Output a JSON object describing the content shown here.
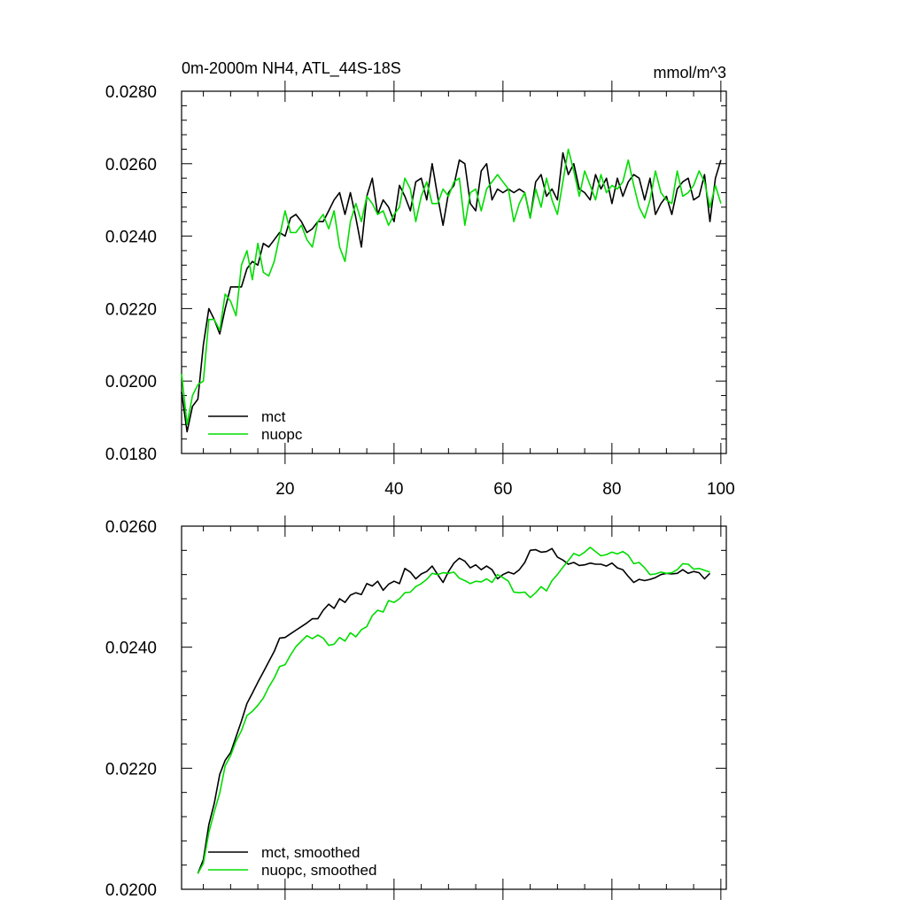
{
  "chart_data": [
    {
      "type": "line",
      "title": "0m-2000m NH4, ATL_44S-18S",
      "units": "mmol/m^3",
      "xlim": [
        1,
        101
      ],
      "ylim": [
        0.018,
        0.028
      ],
      "yticks": [
        "0.0180",
        "0.0200",
        "0.0220",
        "0.0240",
        "0.0260",
        "0.0280"
      ],
      "xticks": [
        "20",
        "40",
        "60",
        "80",
        "100"
      ],
      "grid": false,
      "legend": "bottom-left",
      "x": [
        1,
        2,
        3,
        4,
        5,
        6,
        7,
        8,
        9,
        10,
        11,
        12,
        13,
        14,
        15,
        16,
        17,
        18,
        19,
        20,
        21,
        22,
        23,
        24,
        25,
        26,
        27,
        28,
        29,
        30,
        31,
        32,
        33,
        34,
        35,
        36,
        37,
        38,
        39,
        40,
        41,
        42,
        43,
        44,
        45,
        46,
        47,
        48,
        49,
        50,
        51,
        52,
        53,
        54,
        55,
        56,
        57,
        58,
        59,
        60,
        61,
        62,
        63,
        64,
        65,
        66,
        67,
        68,
        69,
        70,
        71,
        72,
        73,
        74,
        75,
        76,
        77,
        78,
        79,
        80,
        81,
        82,
        83,
        84,
        85,
        86,
        87,
        88,
        89,
        90,
        91,
        92,
        93,
        94,
        95,
        96,
        97,
        98,
        99,
        100
      ],
      "series": [
        {
          "name": "mct",
          "color": "#000000",
          "values": [
            0.0197,
            0.0186,
            0.0193,
            0.0195,
            0.021,
            0.022,
            0.0217,
            0.0213,
            0.022,
            0.0226,
            0.0226,
            0.0226,
            0.0231,
            0.0233,
            0.0232,
            0.0238,
            0.0237,
            0.0239,
            0.0241,
            0.024,
            0.0245,
            0.0246,
            0.0244,
            0.0241,
            0.0242,
            0.0244,
            0.0244,
            0.0247,
            0.025,
            0.0252,
            0.0246,
            0.0252,
            0.0245,
            0.0237,
            0.0251,
            0.0256,
            0.0246,
            0.025,
            0.0248,
            0.0244,
            0.0254,
            0.0251,
            0.0247,
            0.0255,
            0.0256,
            0.025,
            0.026,
            0.0251,
            0.0243,
            0.0252,
            0.0254,
            0.0261,
            0.026,
            0.0249,
            0.0247,
            0.0258,
            0.026,
            0.025,
            0.0253,
            0.0252,
            0.0253,
            0.0252,
            0.0253,
            0.0252,
            0.0245,
            0.0255,
            0.0257,
            0.0251,
            0.0253,
            0.025,
            0.0263,
            0.0257,
            0.026,
            0.0253,
            0.0252,
            0.025,
            0.0257,
            0.0253,
            0.0256,
            0.0249,
            0.0256,
            0.0251,
            0.0255,
            0.0257,
            0.0256,
            0.025,
            0.0256,
            0.0246,
            0.0249,
            0.0251,
            0.0246,
            0.0253,
            0.0255,
            0.0256,
            0.025,
            0.0251,
            0.0257,
            0.0244,
            0.0256,
            0.0261
          ]
        },
        {
          "name": "nuopc",
          "color": "#00dd00",
          "values": [
            0.0202,
            0.0188,
            0.0196,
            0.0199,
            0.02,
            0.0217,
            0.0217,
            0.0214,
            0.0224,
            0.0222,
            0.0218,
            0.0232,
            0.0236,
            0.0228,
            0.0238,
            0.023,
            0.0229,
            0.0233,
            0.024,
            0.0247,
            0.0241,
            0.0241,
            0.0243,
            0.0239,
            0.0237,
            0.0244,
            0.0246,
            0.0242,
            0.0247,
            0.0237,
            0.0233,
            0.0244,
            0.0249,
            0.0244,
            0.0251,
            0.0249,
            0.0246,
            0.0247,
            0.0243,
            0.0246,
            0.0248,
            0.0256,
            0.0253,
            0.0244,
            0.0251,
            0.0255,
            0.0249,
            0.0249,
            0.0253,
            0.0251,
            0.0255,
            0.0256,
            0.0243,
            0.0252,
            0.0253,
            0.0247,
            0.0253,
            0.0255,
            0.0257,
            0.0255,
            0.0253,
            0.0244,
            0.0249,
            0.0252,
            0.0245,
            0.0253,
            0.0248,
            0.0256,
            0.025,
            0.0246,
            0.0255,
            0.0264,
            0.0258,
            0.0251,
            0.0258,
            0.0254,
            0.025,
            0.0257,
            0.0252,
            0.0254,
            0.0253,
            0.0255,
            0.0261,
            0.0254,
            0.0248,
            0.0245,
            0.025,
            0.0258,
            0.0252,
            0.025,
            0.0249,
            0.0258,
            0.0251,
            0.0252,
            0.0254,
            0.0258,
            0.0255,
            0.0248,
            0.0254,
            0.0249
          ]
        }
      ]
    },
    {
      "type": "line",
      "title": "",
      "xlim": [
        1,
        101
      ],
      "ylim": [
        0.02,
        0.026
      ],
      "yticks": [
        "0.0200",
        "0.0220",
        "0.0240",
        "0.0260"
      ],
      "grid": false,
      "legend": "bottom-left",
      "x": [
        4,
        5,
        6,
        7,
        8,
        9,
        10,
        11,
        12,
        13,
        14,
        15,
        16,
        17,
        18,
        19,
        20,
        21,
        22,
        23,
        24,
        25,
        26,
        27,
        28,
        29,
        30,
        31,
        32,
        33,
        34,
        35,
        36,
        37,
        38,
        39,
        40,
        41,
        42,
        43,
        44,
        45,
        46,
        47,
        48,
        49,
        50,
        51,
        52,
        53,
        54,
        55,
        56,
        57,
        58,
        59,
        60,
        61,
        62,
        63,
        64,
        65,
        66,
        67,
        68,
        69,
        70,
        71,
        72,
        73,
        74,
        75,
        76,
        77,
        78,
        79,
        80,
        81,
        82,
        83,
        84,
        85,
        86,
        87,
        88,
        89,
        90,
        91,
        92,
        93,
        94,
        95,
        96,
        97,
        98
      ],
      "series": [
        {
          "name": "mct, smoothed",
          "color": "#000000",
          "values": [
            0.02026,
            0.02049,
            0.02107,
            0.02142,
            0.0219,
            0.02213,
            0.02226,
            0.02252,
            0.02278,
            0.02307,
            0.02324,
            0.02342,
            0.02359,
            0.02376,
            0.02393,
            0.02415,
            0.02416,
            0.02422,
            0.02428,
            0.02434,
            0.0244,
            0.02447,
            0.02447,
            0.02461,
            0.02471,
            0.02464,
            0.0248,
            0.02474,
            0.02486,
            0.0249,
            0.02487,
            0.02505,
            0.02501,
            0.02509,
            0.02494,
            0.02504,
            0.02509,
            0.02505,
            0.0253,
            0.02524,
            0.02513,
            0.02521,
            0.02525,
            0.02534,
            0.0252,
            0.02507,
            0.02525,
            0.02539,
            0.02547,
            0.02542,
            0.02531,
            0.02536,
            0.02528,
            0.02534,
            0.02528,
            0.02513,
            0.0252,
            0.02524,
            0.02521,
            0.02528,
            0.0254,
            0.0256,
            0.02561,
            0.02557,
            0.02558,
            0.02563,
            0.02549,
            0.02544,
            0.02537,
            0.0254,
            0.02535,
            0.02536,
            0.02539,
            0.02537,
            0.02537,
            0.02534,
            0.02539,
            0.02531,
            0.02528,
            0.02517,
            0.02507,
            0.02512,
            0.0251,
            0.02512,
            0.02515,
            0.0252,
            0.02522,
            0.02521,
            0.02522,
            0.02528,
            0.02522,
            0.02525,
            0.02523,
            0.02513,
            0.02522
          ]
        },
        {
          "name": "nuopc, smoothed",
          "color": "#00dd00",
          "values": [
            0.02026,
            0.02043,
            0.02094,
            0.02128,
            0.02159,
            0.02204,
            0.02221,
            0.02245,
            0.02262,
            0.02287,
            0.02294,
            0.02304,
            0.02316,
            0.02334,
            0.02349,
            0.02368,
            0.02371,
            0.02387,
            0.02401,
            0.0241,
            0.02419,
            0.02414,
            0.0242,
            0.02415,
            0.02403,
            0.02405,
            0.02416,
            0.0241,
            0.02424,
            0.02417,
            0.02429,
            0.02434,
            0.02452,
            0.02461,
            0.02458,
            0.02477,
            0.02474,
            0.0248,
            0.0249,
            0.02491,
            0.025,
            0.02505,
            0.02512,
            0.02522,
            0.0252,
            0.02523,
            0.02522,
            0.02524,
            0.02514,
            0.0251,
            0.02505,
            0.02509,
            0.02508,
            0.02513,
            0.02507,
            0.0252,
            0.02515,
            0.02509,
            0.02491,
            0.0249,
            0.02491,
            0.02482,
            0.0249,
            0.025,
            0.02493,
            0.0251,
            0.0252,
            0.02532,
            0.02543,
            0.02555,
            0.02551,
            0.02557,
            0.02565,
            0.02558,
            0.02551,
            0.02553,
            0.02557,
            0.02554,
            0.02558,
            0.02552,
            0.02538,
            0.0254,
            0.02531,
            0.0252,
            0.02521,
            0.02524,
            0.02522,
            0.02523,
            0.02528,
            0.02538,
            0.02537,
            0.02529,
            0.0253,
            0.02527,
            0.02524
          ]
        }
      ]
    }
  ]
}
